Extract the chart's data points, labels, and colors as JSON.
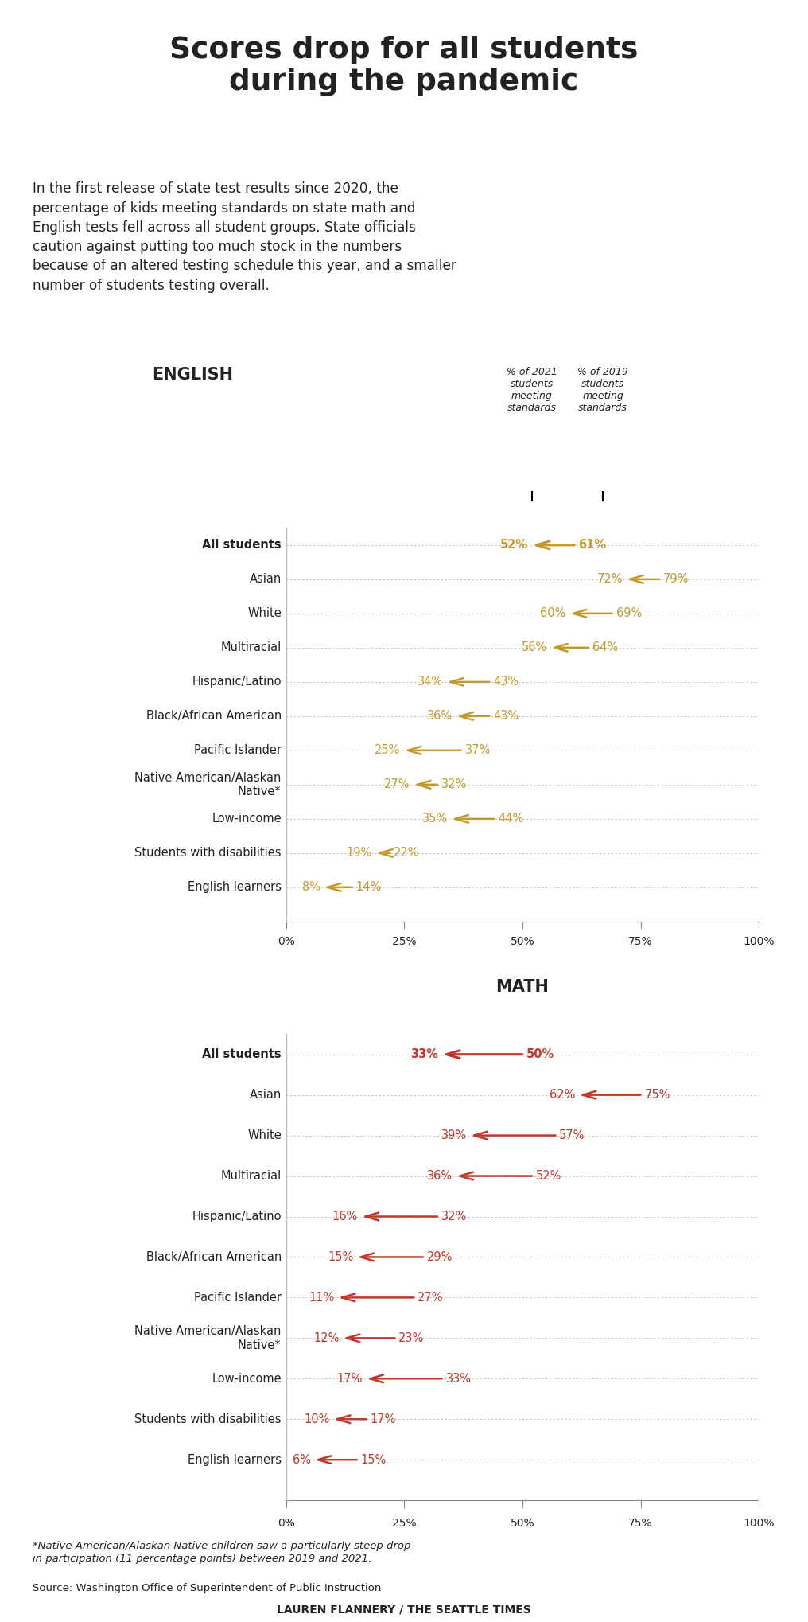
{
  "title": "Scores drop for all students\nduring the pandemic",
  "subtitle": "In the first release of state test results since 2020, the\npercentage of kids meeting standards on state math and\nEnglish tests fell across all student groups. State officials\ncaution against putting too much stock in the numbers\nbecause of an altered testing schedule this year, and a smaller\nnumber of students testing overall.",
  "english": {
    "section_label": "ENGLISH",
    "col1_label": "% of 2021\nstudents\nmeeting\nstandards",
    "col2_label": "% of 2019\nstudents\nmeeting\nstandards",
    "categories": [
      "All students",
      "Asian",
      "White",
      "Multiracial",
      "Hispanic/Latino",
      "Black/African American",
      "Pacific Islander",
      "Native American/Alaskan\nNative*",
      "Low-income",
      "Students with disabilities",
      "English learners"
    ],
    "bold_cats": [
      0
    ],
    "val2021": [
      52,
      72,
      60,
      56,
      34,
      36,
      25,
      27,
      35,
      19,
      8
    ],
    "val2019": [
      61,
      79,
      69,
      64,
      43,
      43,
      37,
      32,
      44,
      22,
      14
    ],
    "color": "#C49A2A"
  },
  "math": {
    "section_label": "MATH",
    "categories": [
      "All students",
      "Asian",
      "White",
      "Multiracial",
      "Hispanic/Latino",
      "Black/African American",
      "Pacific Islander",
      "Native American/Alaskan\nNative*",
      "Low-income",
      "Students with disabilities",
      "English learners"
    ],
    "bold_cats": [
      0
    ],
    "val2021": [
      33,
      62,
      39,
      36,
      16,
      15,
      11,
      12,
      17,
      10,
      6
    ],
    "val2019": [
      50,
      75,
      57,
      52,
      32,
      29,
      27,
      23,
      33,
      17,
      15
    ],
    "color": "#C0392B"
  },
  "footnote": "*Native American/Alaskan Native children saw a particularly steep drop\nin participation (11 percentage points) between 2019 and 2021.",
  "source": "Source: Washington Office of Superintendent of Public Instruction",
  "byline": "LAUREN FLANNERY / THE SEATTLE TIMES",
  "bg_color": "#FFFFFF",
  "grid_color": "#BBBBBB",
  "text_color": "#222222"
}
